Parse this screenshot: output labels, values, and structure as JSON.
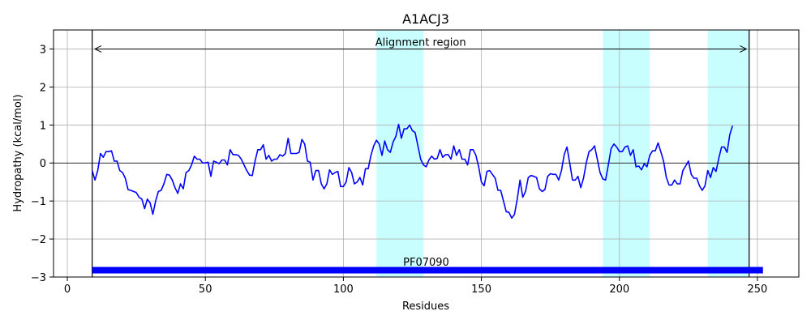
{
  "chart_data": {
    "type": "line",
    "title": "A1ACJ3",
    "xlabel": "Residues",
    "ylabel": "Hydropathy (kcal/mol)",
    "xlim": [
      -5,
      265
    ],
    "ylim": [
      -3,
      3.5
    ],
    "xticks": [
      0,
      50,
      100,
      150,
      200,
      250
    ],
    "yticks": [
      -3,
      -2,
      -1,
      0,
      1,
      2,
      3
    ],
    "grid": true,
    "zero_line": 0,
    "series": [
      {
        "name": "hydropathy",
        "color": "#0000ff",
        "x": [
          9,
          10,
          11,
          12,
          13,
          14,
          15,
          16,
          17,
          18,
          19,
          20,
          21,
          22,
          23,
          24,
          25,
          26,
          27,
          28,
          29,
          30,
          31,
          32,
          33,
          34,
          35,
          36,
          37,
          38,
          39,
          40,
          41,
          42,
          43,
          44,
          45,
          46,
          47,
          48,
          49,
          50,
          51,
          52,
          53,
          54,
          55,
          56,
          57,
          58,
          59,
          60,
          61,
          62,
          63,
          64,
          65,
          66,
          67,
          68,
          69,
          70,
          71,
          72,
          73,
          74,
          75,
          76,
          77,
          78,
          79,
          80,
          81,
          82,
          83,
          84,
          85,
          86,
          87,
          88,
          89,
          90,
          91,
          92,
          93,
          94,
          95,
          96,
          97,
          98,
          99,
          100,
          101,
          102,
          103,
          104,
          105,
          106,
          107,
          108,
          109,
          110,
          111,
          112,
          113,
          114,
          115,
          116,
          117,
          118,
          119,
          120,
          121,
          122,
          123,
          124,
          125,
          126,
          127,
          128,
          129,
          130,
          131,
          132,
          133,
          134,
          135,
          136,
          137,
          138,
          139,
          140,
          141,
          142,
          143,
          144,
          145,
          146,
          147,
          148,
          149,
          150,
          151,
          152,
          153,
          154,
          155,
          156,
          157,
          158,
          159,
          160,
          161,
          162,
          163,
          164,
          165,
          166,
          167,
          168,
          169,
          170,
          171,
          172,
          173,
          174,
          175,
          176,
          177,
          178,
          179,
          180,
          181,
          182,
          183,
          184,
          185,
          186,
          187,
          188,
          189,
          190,
          191,
          192,
          193,
          194,
          195,
          196,
          197,
          198,
          199,
          200,
          201,
          202,
          203,
          204,
          205,
          206,
          207,
          208,
          209,
          210,
          211,
          212,
          213,
          214,
          215,
          216,
          217,
          218,
          219,
          220,
          221,
          222,
          223,
          224,
          225,
          226,
          227,
          228,
          229,
          230,
          231,
          232,
          233,
          234,
          235,
          236,
          237,
          238,
          239,
          240,
          241
        ],
        "y": [
          -0.2,
          -0.45,
          -0.2,
          0.25,
          0.15,
          0.3,
          0.3,
          0.32,
          0.05,
          0.05,
          -0.2,
          -0.25,
          -0.4,
          -0.7,
          -0.72,
          -0.75,
          -0.78,
          -0.9,
          -0.95,
          -1.2,
          -0.95,
          -1.05,
          -1.35,
          -1.0,
          -0.75,
          -0.72,
          -0.55,
          -0.3,
          -0.32,
          -0.45,
          -0.65,
          -0.8,
          -0.55,
          -0.68,
          -0.25,
          -0.2,
          -0.05,
          0.18,
          0.1,
          0.1,
          0.0,
          0.0,
          0.02,
          -0.35,
          0.05,
          0.02,
          -0.02,
          0.08,
          0.08,
          -0.05,
          0.35,
          0.22,
          0.22,
          0.2,
          0.1,
          -0.05,
          -0.2,
          -0.32,
          -0.33,
          0.05,
          0.35,
          0.35,
          0.48,
          0.1,
          0.2,
          0.05,
          0.1,
          0.1,
          0.22,
          0.18,
          0.25,
          0.65,
          0.25,
          0.25,
          0.25,
          0.28,
          0.62,
          0.5,
          0.05,
          0.02,
          -0.45,
          -0.2,
          -0.2,
          -0.55,
          -0.68,
          -0.55,
          -0.18,
          -0.3,
          -0.25,
          -0.22,
          -0.62,
          -0.62,
          -0.5,
          -0.12,
          -0.25,
          -0.55,
          -0.5,
          -0.38,
          -0.58,
          -0.15,
          -0.15,
          0.2,
          0.45,
          0.6,
          0.5,
          0.2,
          0.58,
          0.35,
          0.28,
          0.55,
          0.7,
          1.02,
          0.65,
          0.9,
          0.9,
          1.0,
          0.85,
          0.8,
          0.45,
          0.1,
          -0.05,
          -0.1,
          0.08,
          0.18,
          0.1,
          0.12,
          0.35,
          0.15,
          0.22,
          0.22,
          0.1,
          0.45,
          0.2,
          0.35,
          0.1,
          0.1,
          -0.05,
          0.35,
          0.35,
          0.2,
          -0.1,
          -0.5,
          -0.6,
          -0.22,
          -0.2,
          -0.3,
          -0.4,
          -0.72,
          -0.72,
          -1.0,
          -1.28,
          -1.3,
          -1.45,
          -1.35,
          -0.95,
          -0.45,
          -0.9,
          -0.75,
          -0.38,
          -0.33,
          -0.35,
          -0.38,
          -0.68,
          -0.75,
          -0.7,
          -0.35,
          -0.28,
          -0.3,
          -0.3,
          -0.45,
          -0.2,
          0.22,
          0.42,
          0.0,
          -0.45,
          -0.45,
          -0.35,
          -0.65,
          -0.4,
          0.0,
          0.3,
          0.35,
          0.45,
          0.1,
          -0.25,
          -0.42,
          -0.45,
          -0.05,
          0.38,
          0.5,
          0.42,
          0.3,
          0.3,
          0.42,
          0.45,
          0.2,
          0.35,
          -0.1,
          -0.08,
          -0.18,
          -0.02,
          -0.1,
          0.2,
          0.32,
          0.32,
          0.53,
          0.3,
          0.05,
          -0.38,
          -0.58,
          -0.58,
          -0.45,
          -0.55,
          -0.55,
          -0.2,
          -0.08,
          0.05,
          -0.3,
          -0.4,
          -0.4,
          -0.6,
          -0.72,
          -0.6,
          -0.2,
          -0.38,
          -0.12,
          -0.22,
          0.12,
          0.42,
          0.42,
          0.28,
          0.75,
          0.98
        ]
      }
    ],
    "highlight_regions": [
      [
        112,
        129
      ],
      [
        194,
        211
      ],
      [
        232,
        247
      ]
    ],
    "highlight_color": "#c8fffe",
    "alignment_lines": [
      9,
      247
    ],
    "annotations": [
      {
        "text": "Alignment region",
        "x": 128,
        "y": 3.08,
        "arrow_from": 10,
        "arrow_to": 246,
        "arrow_y": 3.0
      },
      {
        "text": "PF07090",
        "x": 130,
        "y": -2.6
      }
    ],
    "domain_bar": {
      "name": "PF07090",
      "start": 9,
      "end": 252,
      "y": -2.82,
      "color": "#0000ff"
    }
  }
}
